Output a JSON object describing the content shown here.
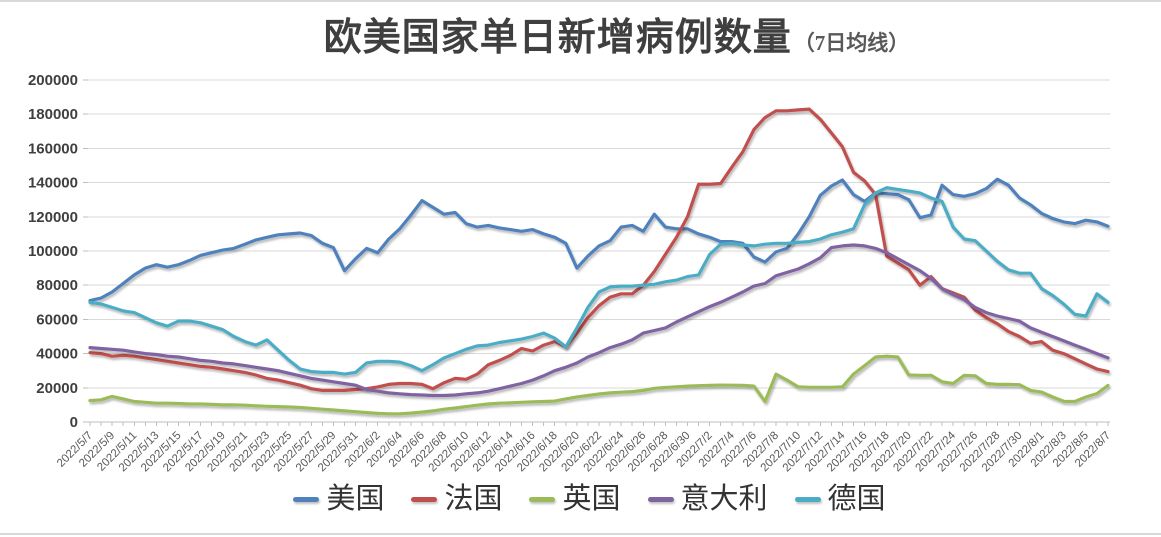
{
  "title": {
    "main": "欧美国家单日新增病例数量",
    "sub": "（7日均线）"
  },
  "colors": {
    "us_blue": "#4F81BD",
    "france_red": "#C0504D",
    "uk_green": "#9BBB59",
    "italy_purple": "#8064A2",
    "germany_teal": "#4BACC6",
    "gridline": "#D9D9D9",
    "axis_line": "#BFBFBF",
    "title_text": "#3F3F3F",
    "axis_text": "#595959"
  },
  "chart_data": {
    "type": "line",
    "title": "欧美国家单日新增病例数量（7日均线）",
    "xlabel": "",
    "ylabel": "",
    "ylim": [
      0,
      200000
    ],
    "y_step": 20000,
    "grid": true,
    "legend_position": "bottom",
    "x_tick_every": 2,
    "x": [
      "2022/5/7",
      "2022/5/8",
      "2022/5/9",
      "2022/5/10",
      "2022/5/11",
      "2022/5/12",
      "2022/5/13",
      "2022/5/14",
      "2022/5/15",
      "2022/5/16",
      "2022/5/17",
      "2022/5/18",
      "2022/5/19",
      "2022/5/20",
      "2022/5/21",
      "2022/5/22",
      "2022/5/23",
      "2022/5/24",
      "2022/5/25",
      "2022/5/26",
      "2022/5/27",
      "2022/5/28",
      "2022/5/29",
      "2022/5/30",
      "2022/5/31",
      "2022/6/1",
      "2022/6/2",
      "2022/6/3",
      "2022/6/4",
      "2022/6/5",
      "2022/6/6",
      "2022/6/7",
      "2022/6/8",
      "2022/6/9",
      "2022/6/10",
      "2022/6/11",
      "2022/6/12",
      "2022/6/13",
      "2022/6/14",
      "2022/6/15",
      "2022/6/16",
      "2022/6/17",
      "2022/6/18",
      "2022/6/19",
      "2022/6/20",
      "2022/6/21",
      "2022/6/22",
      "2022/6/23",
      "2022/6/24",
      "2022/6/25",
      "2022/6/26",
      "2022/6/27",
      "2022/6/28",
      "2022/6/29",
      "2022/6/30",
      "2022/7/1",
      "2022/7/2",
      "2022/7/3",
      "2022/7/4",
      "2022/7/5",
      "2022/7/6",
      "2022/7/7",
      "2022/7/8",
      "2022/7/9",
      "2022/7/10",
      "2022/7/11",
      "2022/7/12",
      "2022/7/13",
      "2022/7/14",
      "2022/7/15",
      "2022/7/16",
      "2022/7/17",
      "2022/7/18",
      "2022/7/19",
      "2022/7/20",
      "2022/7/21",
      "2022/7/22",
      "2022/7/23",
      "2022/7/24",
      "2022/7/25",
      "2022/7/26",
      "2022/7/27",
      "2022/7/28",
      "2022/7/29",
      "2022/7/30",
      "2022/7/31",
      "2022/8/1",
      "2022/8/2",
      "2022/8/3",
      "2022/8/4",
      "2022/8/5",
      "2022/8/6",
      "2022/8/7"
    ],
    "series": [
      {
        "name": "美国",
        "color": "#4F81BD",
        "values": [
          71000,
          72500,
          76000,
          81000,
          86000,
          90000,
          92000,
          90500,
          92000,
          94500,
          97500,
          99000,
          100500,
          101500,
          104000,
          106500,
          108000,
          109500,
          110000,
          110500,
          109000,
          104500,
          102000,
          88500,
          95500,
          101500,
          99000,
          107000,
          113000,
          121000,
          129500,
          125500,
          121500,
          122500,
          116000,
          114000,
          115000,
          113500,
          112500,
          111500,
          112500,
          110000,
          108000,
          104500,
          90000,
          97000,
          103000,
          106000,
          114000,
          115000,
          111500,
          121500,
          114000,
          113000,
          113000,
          110000,
          108000,
          105500,
          105500,
          104500,
          96500,
          93500,
          99500,
          101500,
          110000,
          120000,
          132500,
          138000,
          141500,
          133000,
          129000,
          134000,
          133500,
          133000,
          130000,
          119500,
          121000,
          138500,
          133000,
          132000,
          133500,
          136500,
          142000,
          138500,
          131000,
          127000,
          122000,
          119000,
          117000,
          116000,
          118000,
          117000,
          114500
        ]
      },
      {
        "name": "法国",
        "color": "#C0504D",
        "values": [
          40500,
          40000,
          38500,
          39000,
          38500,
          37500,
          36500,
          35500,
          34500,
          33500,
          32500,
          32000,
          31000,
          30000,
          29000,
          27500,
          25500,
          24500,
          23000,
          21500,
          19500,
          18500,
          18500,
          18500,
          19000,
          19500,
          20500,
          22000,
          22500,
          22500,
          22000,
          19500,
          23000,
          25500,
          25000,
          28000,
          33500,
          36000,
          39000,
          43000,
          41500,
          45000,
          47000,
          44000,
          52000,
          61000,
          68000,
          73000,
          75000,
          75000,
          80000,
          88000,
          98000,
          108000,
          120000,
          139000,
          139000,
          139500,
          149000,
          158000,
          171000,
          178000,
          182000,
          182000,
          182500,
          183000,
          177000,
          169000,
          161000,
          146000,
          141000,
          133000,
          97000,
          93000,
          89000,
          80000,
          85000,
          78000,
          75500,
          73000,
          65500,
          61000,
          57500,
          53000,
          50000,
          46000,
          47000,
          42000,
          40000,
          37000,
          34000,
          31000,
          29500
        ]
      },
      {
        "name": "英国",
        "color": "#9BBB59",
        "values": [
          12500,
          13000,
          15000,
          13500,
          12000,
          11500,
          11000,
          11000,
          10800,
          10500,
          10500,
          10300,
          10000,
          10000,
          9800,
          9500,
          9200,
          9000,
          8800,
          8500,
          8000,
          7500,
          7000,
          6500,
          6000,
          5500,
          5000,
          4800,
          4800,
          5200,
          5800,
          6500,
          7500,
          8200,
          9000,
          9800,
          10500,
          11000,
          11200,
          11500,
          11800,
          12000,
          12200,
          13500,
          14700,
          15500,
          16400,
          17000,
          17400,
          17800,
          18500,
          19700,
          20200,
          20600,
          21000,
          21200,
          21400,
          21600,
          21500,
          21400,
          21000,
          12000,
          28000,
          24500,
          20500,
          20300,
          20300,
          20300,
          20500,
          28000,
          33000,
          38000,
          38500,
          38000,
          27500,
          27300,
          27300,
          23500,
          22500,
          27300,
          27000,
          22500,
          22000,
          22000,
          21800,
          18500,
          17500,
          14600,
          12100,
          12000,
          14600,
          16600,
          21400
        ]
      },
      {
        "name": "意大利",
        "color": "#8064A2",
        "values": [
          43500,
          43000,
          42500,
          42000,
          41000,
          40000,
          39500,
          38500,
          38000,
          37000,
          36000,
          35500,
          34500,
          34000,
          33000,
          32000,
          31000,
          30000,
          28500,
          27000,
          25500,
          24500,
          23500,
          22500,
          21500,
          19000,
          18000,
          17000,
          16500,
          16000,
          15800,
          15500,
          15500,
          15800,
          16500,
          17000,
          18000,
          19500,
          21000,
          22500,
          24500,
          27000,
          30000,
          32000,
          34500,
          38000,
          40500,
          43500,
          45500,
          48000,
          52000,
          53500,
          55000,
          58500,
          61500,
          64500,
          67500,
          70000,
          73000,
          76000,
          79500,
          81000,
          85500,
          87500,
          89500,
          92500,
          96000,
          102000,
          103000,
          103500,
          103000,
          101500,
          99000,
          95500,
          92000,
          88500,
          84000,
          78000,
          74500,
          71500,
          67000,
          64000,
          62000,
          60500,
          59000,
          55000,
          52500,
          50000,
          47500,
          45000,
          42500,
          40000,
          37500
        ]
      },
      {
        "name": "德国",
        "color": "#4BACC6",
        "values": [
          70000,
          69000,
          67000,
          65000,
          64000,
          61000,
          58000,
          56000,
          59000,
          59000,
          58000,
          56000,
          54000,
          50000,
          47000,
          45000,
          48000,
          42000,
          36000,
          31000,
          29500,
          29000,
          29000,
          28000,
          29000,
          34500,
          35500,
          35500,
          35000,
          33000,
          30000,
          33500,
          37500,
          40000,
          42500,
          44500,
          45000,
          46500,
          47500,
          48500,
          50000,
          52000,
          49000,
          44000,
          55000,
          67000,
          76000,
          79000,
          79500,
          79500,
          80000,
          80500,
          82000,
          83000,
          85000,
          86000,
          98000,
          104000,
          104500,
          103500,
          103000,
          104000,
          104500,
          104500,
          105000,
          105500,
          107000,
          109500,
          111000,
          113000,
          127000,
          134000,
          137000,
          136000,
          135000,
          134000,
          131000,
          129000,
          114000,
          107000,
          106000,
          100000,
          94000,
          89000,
          87000,
          87000,
          78000,
          74000,
          69000,
          63000,
          62000,
          75000,
          70000
        ]
      }
    ]
  }
}
